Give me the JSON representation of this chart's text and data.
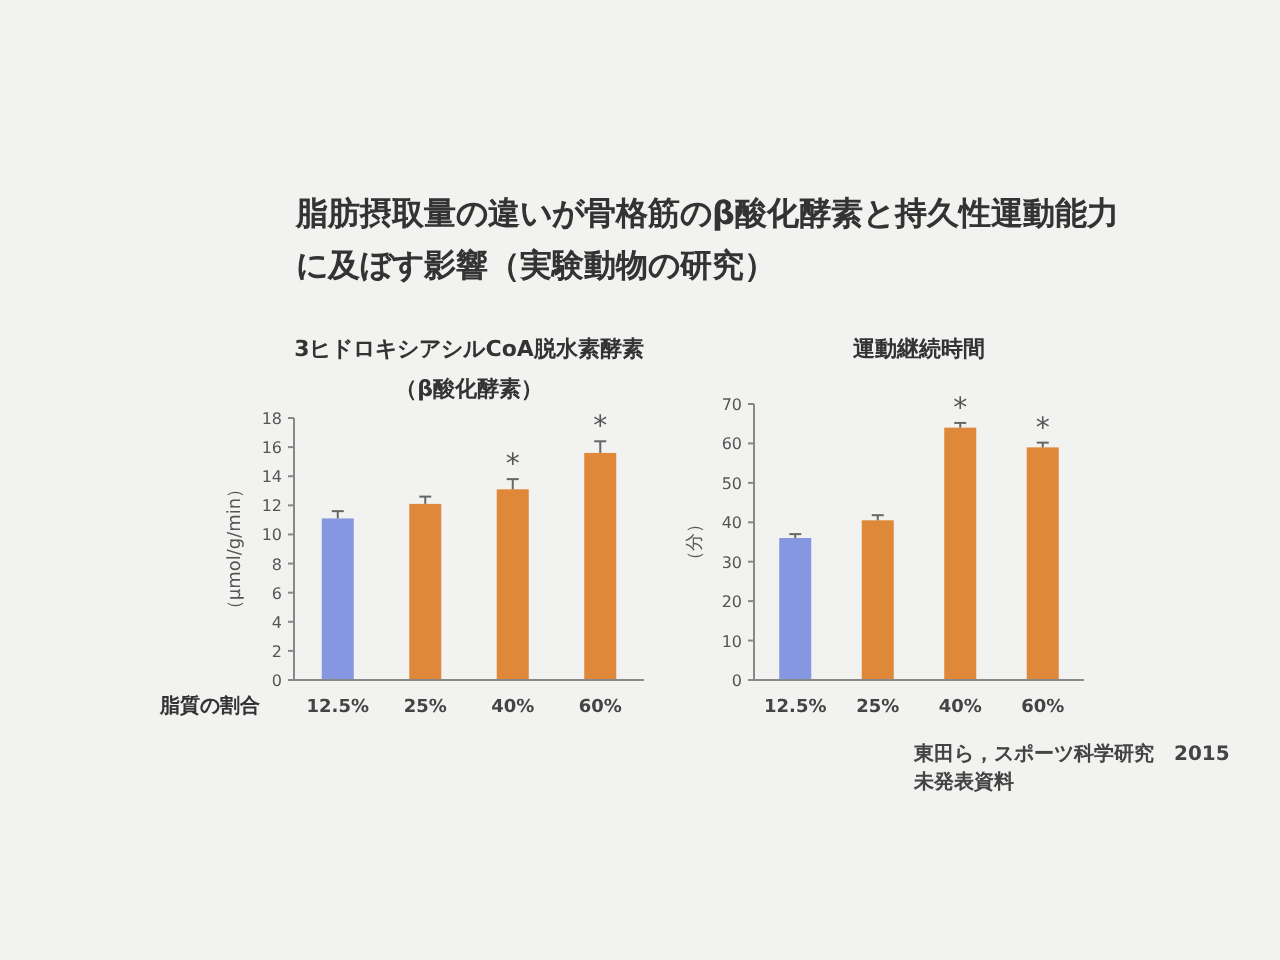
{
  "chart_data": [
    {
      "type": "other",
      "title": "脂肪摂取量の違いが骨格筋のβ酸化酵素と持久性運動能力に及ぼす影響（実験動物の研究）",
      "annotations": [
        "東田ら，スポーツ科学研究　2015",
        "未発表資料"
      ]
    },
    {
      "type": "bar",
      "title": "3ヒドロキシアシルCoA脱水素酵素",
      "subtitle": "（β酸化酵素）",
      "xlabel": "脂質の割合",
      "ylabel": "（μmol/g/min）",
      "categories": [
        "12.5%",
        "25%",
        "40%",
        "60%"
      ],
      "values": [
        11.1,
        12.1,
        13.1,
        15.6
      ],
      "colors": [
        "#8497e0",
        "#e0883a",
        "#e0883a",
        "#e0883a"
      ],
      "errors": [
        [
          11.1,
          11.6
        ],
        [
          12.1,
          12.6
        ],
        [
          13.1,
          13.8
        ],
        [
          15.6,
          16.4
        ]
      ],
      "ylim": [
        0,
        18
      ],
      "yticks": [
        0,
        2,
        4,
        6,
        8,
        10,
        12,
        14,
        16,
        18
      ],
      "annotations": [
        {
          "text": "*",
          "x": "40%",
          "y": 13.1
        },
        {
          "text": "*",
          "x": "60%",
          "y": 15.6
        }
      ]
    },
    {
      "type": "bar",
      "title": "運動継続時間",
      "ylabel": "（分）",
      "categories": [
        "12.5%",
        "25%",
        "40%",
        "60%"
      ],
      "values": [
        36,
        40.5,
        64,
        59
      ],
      "colors": [
        "#8497e0",
        "#e0883a",
        "#e0883a",
        "#e0883a"
      ],
      "errors": [
        [
          36,
          37
        ],
        [
          40.5,
          41.8
        ],
        [
          64,
          65.2
        ],
        [
          59,
          60.2
        ]
      ],
      "ylim": [
        0,
        70
      ],
      "yticks": [
        0,
        10,
        20,
        30,
        40,
        50,
        60,
        70
      ],
      "annotations": [
        {
          "text": "*",
          "x": "40%",
          "y": 64
        },
        {
          "text": "*",
          "x": "60%",
          "y": 59
        }
      ]
    }
  ]
}
